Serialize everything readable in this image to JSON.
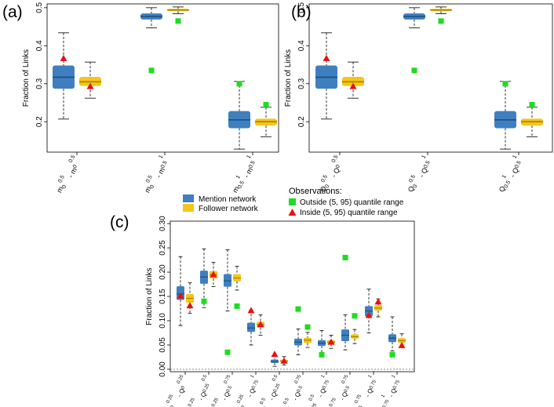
{
  "colors": {
    "mention": "#3f7fbf",
    "mention_median": "#1f4f7f",
    "follower": "#f5c518",
    "follower_median": "#a88000",
    "outside": "#1ddd1d",
    "inside": "#e81010"
  },
  "legend": {
    "series": [
      {
        "name": "Mention network",
        "color_key": "mention"
      },
      {
        "name": "Follower network",
        "color_key": "follower"
      }
    ],
    "observations_title": "Observations:",
    "observations": [
      {
        "label": "Outside (5, 95) quantile range",
        "marker": "square"
      },
      {
        "label": "Inside (5, 95) quantile range",
        "marker": "triangle"
      }
    ]
  },
  "chart_data": [
    {
      "type": "boxplot",
      "panel": "(a)",
      "ylabel": "Fraction of Links",
      "ylim": [
        0.12,
        0.51
      ],
      "yticks": [
        "0.2",
        "0.3",
        "0.4",
        "0.5"
      ],
      "ytick_values": [
        0.2,
        0.3,
        0.4,
        0.5
      ],
      "categories": [
        {
          "base": "m",
          "s1": "0",
          "p1": "0.5",
          "base2": "m",
          "s2": "0",
          "p2": "0.5"
        },
        {
          "base": "m",
          "s1": "0",
          "p1": "0.5",
          "base2": "m",
          "s2": "0.5",
          "p2": "1"
        },
        {
          "base": "m",
          "s1": "0.5",
          "p1": "1",
          "base2": "m",
          "s2": "0.5",
          "p2": "1"
        }
      ],
      "series": [
        {
          "name": "Mention network",
          "boxes": [
            {
              "min": 0.207,
              "q1": 0.287,
              "median": 0.317,
              "q3": 0.348,
              "max": 0.434
            },
            {
              "min": 0.447,
              "q1": 0.469,
              "median": 0.477,
              "q3": 0.485,
              "max": 0.5
            },
            {
              "min": 0.128,
              "q1": 0.183,
              "median": 0.205,
              "q3": 0.228,
              "max": 0.306
            }
          ]
        },
        {
          "name": "Follower network",
          "boxes": [
            {
              "min": 0.262,
              "q1": 0.294,
              "median": 0.305,
              "q3": 0.318,
              "max": 0.357
            },
            {
              "min": 0.484,
              "q1": 0.491,
              "median": 0.494,
              "q3": 0.497,
              "max": 0.502
            },
            {
              "min": 0.16,
              "q1": 0.19,
              "median": 0.2,
              "q3": 0.208,
              "max": 0.238
            }
          ]
        }
      ],
      "observations": [
        {
          "category": 0,
          "series": 0,
          "value": 0.368,
          "marker": "triangle"
        },
        {
          "category": 0,
          "series": 1,
          "value": 0.294,
          "marker": "triangle"
        },
        {
          "category": 1,
          "series": 0,
          "value": 0.335,
          "marker": "square"
        },
        {
          "category": 1,
          "series": 1,
          "value": 0.465,
          "marker": "square"
        },
        {
          "category": 2,
          "series": 0,
          "value": 0.3,
          "marker": "square"
        },
        {
          "category": 2,
          "series": 1,
          "value": 0.245,
          "marker": "square"
        }
      ]
    },
    {
      "type": "boxplot",
      "panel": "(b)",
      "ylabel": "Fraction of Links",
      "ylim": [
        0.12,
        0.51
      ],
      "yticks": [
        "0.2",
        "0.3",
        "0.4",
        "0.5"
      ],
      "ytick_values": [
        0.2,
        0.3,
        0.4,
        0.5
      ],
      "categories": [
        {
          "base": "Q",
          "s1": "0",
          "p1": "0.5",
          "base2": "Q",
          "s2": "0",
          "p2": "0.5"
        },
        {
          "base": "Q",
          "s1": "0",
          "p1": "0.5",
          "base2": "Q",
          "s2": "0.5",
          "p2": "1"
        },
        {
          "base": "Q",
          "s1": "0.5",
          "p1": "1",
          "base2": "Q",
          "s2": "0.5",
          "p2": "1"
        }
      ],
      "series": [
        {
          "name": "Mention network",
          "boxes": [
            {
              "min": 0.207,
              "q1": 0.287,
              "median": 0.317,
              "q3": 0.348,
              "max": 0.434
            },
            {
              "min": 0.447,
              "q1": 0.469,
              "median": 0.477,
              "q3": 0.485,
              "max": 0.5
            },
            {
              "min": 0.128,
              "q1": 0.183,
              "median": 0.205,
              "q3": 0.228,
              "max": 0.306
            }
          ]
        },
        {
          "name": "Follower network",
          "boxes": [
            {
              "min": 0.262,
              "q1": 0.294,
              "median": 0.305,
              "q3": 0.318,
              "max": 0.357
            },
            {
              "min": 0.484,
              "q1": 0.491,
              "median": 0.494,
              "q3": 0.497,
              "max": 0.502
            },
            {
              "min": 0.16,
              "q1": 0.19,
              "median": 0.2,
              "q3": 0.208,
              "max": 0.238
            }
          ]
        }
      ],
      "observations": [
        {
          "category": 0,
          "series": 0,
          "value": 0.368,
          "marker": "triangle"
        },
        {
          "category": 0,
          "series": 1,
          "value": 0.294,
          "marker": "triangle"
        },
        {
          "category": 1,
          "series": 0,
          "value": 0.335,
          "marker": "square"
        },
        {
          "category": 1,
          "series": 1,
          "value": 0.465,
          "marker": "square"
        },
        {
          "category": 2,
          "series": 0,
          "value": 0.3,
          "marker": "square"
        },
        {
          "category": 2,
          "series": 1,
          "value": 0.245,
          "marker": "square"
        }
      ]
    },
    {
      "type": "boxplot",
      "panel": "(c)",
      "ylabel": "Fraction of Links",
      "ylim": [
        -0.005,
        0.305
      ],
      "yticks": [
        "0.00",
        "0.05",
        "0.10",
        "0.15",
        "0.20",
        "0.25",
        "0.30"
      ],
      "ytick_values": [
        0,
        0.05,
        0.1,
        0.15,
        0.2,
        0.25,
        0.3
      ],
      "categories": [
        {
          "base": "Q",
          "s1": "0",
          "p1": "0.25",
          "base2": "Q",
          "s2": "0",
          "p2": "0.25"
        },
        {
          "base": "Q",
          "s1": "0",
          "p1": "0.25",
          "base2": "Q",
          "s2": "0.25",
          "p2": "0.5"
        },
        {
          "base": "Q",
          "s1": "0",
          "p1": "0.25",
          "base2": "Q",
          "s2": "0.5",
          "p2": "0.75"
        },
        {
          "base": "Q",
          "s1": "0",
          "p1": "0.25",
          "base2": "Q",
          "s2": "0.75",
          "p2": "1"
        },
        {
          "base": "Q",
          "s1": "0.25",
          "p1": "0.5",
          "base2": "Q",
          "s2": "0.25",
          "p2": "0.5"
        },
        {
          "base": "Q",
          "s1": "0.25",
          "p1": "0.5",
          "base2": "Q",
          "s2": "0.5",
          "p2": "0.75"
        },
        {
          "base": "Q",
          "s1": "0.25",
          "p1": "0.5",
          "base2": "Q",
          "s2": "0.75",
          "p2": "1"
        },
        {
          "base": "Q",
          "s1": "0.5",
          "p1": "0.75",
          "base2": "Q",
          "s2": "0.5",
          "p2": "0.75"
        },
        {
          "base": "Q",
          "s1": "0.5",
          "p1": "0.75",
          "base2": "Q",
          "s2": "0.75",
          "p2": "1"
        },
        {
          "base": "Q",
          "s1": "0.75",
          "p1": "1",
          "base2": "Q",
          "s2": "0.75",
          "p2": "1"
        }
      ],
      "series": [
        {
          "name": "Mention network",
          "boxes": [
            {
              "min": 0.09,
              "q1": 0.143,
              "median": 0.155,
              "q3": 0.171,
              "max": 0.232
            },
            {
              "min": 0.127,
              "q1": 0.176,
              "median": 0.19,
              "q3": 0.203,
              "max": 0.248
            },
            {
              "min": 0.12,
              "q1": 0.17,
              "median": 0.182,
              "q3": 0.196,
              "max": 0.246
            },
            {
              "min": 0.05,
              "q1": 0.077,
              "median": 0.085,
              "q3": 0.096,
              "max": 0.122
            },
            {
              "min": 0.006,
              "q1": 0.013,
              "median": 0.016,
              "q3": 0.02,
              "max": 0.03
            },
            {
              "min": 0.03,
              "q1": 0.049,
              "median": 0.056,
              "q3": 0.063,
              "max": 0.083
            },
            {
              "min": 0.033,
              "q1": 0.048,
              "median": 0.054,
              "q3": 0.06,
              "max": 0.08
            },
            {
              "min": 0.04,
              "q1": 0.058,
              "median": 0.07,
              "q3": 0.082,
              "max": 0.112
            },
            {
              "min": 0.075,
              "q1": 0.109,
              "median": 0.12,
              "q3": 0.13,
              "max": 0.165
            },
            {
              "min": 0.038,
              "q1": 0.056,
              "median": 0.064,
              "q3": 0.072,
              "max": 0.108
            }
          ]
        },
        {
          "name": "Follower network",
          "boxes": [
            {
              "min": 0.115,
              "q1": 0.137,
              "median": 0.146,
              "q3": 0.155,
              "max": 0.178
            },
            {
              "min": 0.17,
              "q1": 0.187,
              "median": 0.195,
              "q3": 0.202,
              "max": 0.22
            },
            {
              "min": 0.163,
              "q1": 0.181,
              "median": 0.188,
              "q3": 0.196,
              "max": 0.212
            },
            {
              "min": 0.07,
              "q1": 0.086,
              "median": 0.092,
              "q3": 0.098,
              "max": 0.112
            },
            {
              "min": 0.009,
              "q1": 0.014,
              "median": 0.017,
              "q3": 0.02,
              "max": 0.026
            },
            {
              "min": 0.045,
              "q1": 0.054,
              "median": 0.06,
              "q3": 0.065,
              "max": 0.076
            },
            {
              "min": 0.043,
              "q1": 0.052,
              "median": 0.056,
              "q3": 0.06,
              "max": 0.07
            },
            {
              "min": 0.053,
              "q1": 0.063,
              "median": 0.067,
              "q3": 0.072,
              "max": 0.082
            },
            {
              "min": 0.108,
              "q1": 0.121,
              "median": 0.126,
              "q3": 0.132,
              "max": 0.145
            },
            {
              "min": 0.045,
              "q1": 0.054,
              "median": 0.059,
              "q3": 0.064,
              "max": 0.073
            }
          ]
        }
      ],
      "observations": [
        {
          "category": 0,
          "series": 0,
          "value": 0.152,
          "marker": "triangle"
        },
        {
          "category": 0,
          "series": 1,
          "value": 0.132,
          "marker": "triangle"
        },
        {
          "category": 1,
          "series": 0,
          "value": 0.14,
          "marker": "square"
        },
        {
          "category": 1,
          "series": 1,
          "value": 0.196,
          "marker": "triangle"
        },
        {
          "category": 2,
          "series": 0,
          "value": 0.035,
          "marker": "square"
        },
        {
          "category": 2,
          "series": 1,
          "value": 0.13,
          "marker": "square"
        },
        {
          "category": 3,
          "series": 0,
          "value": 0.122,
          "marker": "triangle"
        },
        {
          "category": 3,
          "series": 1,
          "value": 0.093,
          "marker": "triangle"
        },
        {
          "category": 4,
          "series": 0,
          "value": 0.032,
          "marker": "triangle"
        },
        {
          "category": 4,
          "series": 1,
          "value": 0.018,
          "marker": "triangle"
        },
        {
          "category": 5,
          "series": 0,
          "value": 0.124,
          "marker": "square"
        },
        {
          "category": 5,
          "series": 1,
          "value": 0.087,
          "marker": "square"
        },
        {
          "category": 6,
          "series": 0,
          "value": 0.03,
          "marker": "square"
        },
        {
          "category": 6,
          "series": 1,
          "value": 0.057,
          "marker": "triangle"
        },
        {
          "category": 7,
          "series": 0,
          "value": 0.23,
          "marker": "square"
        },
        {
          "category": 7,
          "series": 1,
          "value": 0.11,
          "marker": "square"
        },
        {
          "category": 8,
          "series": 0,
          "value": 0.112,
          "marker": "triangle"
        },
        {
          "category": 8,
          "series": 1,
          "value": 0.14,
          "marker": "triangle"
        },
        {
          "category": 9,
          "series": 0,
          "value": 0.03,
          "marker": "square"
        },
        {
          "category": 9,
          "series": 1,
          "value": 0.05,
          "marker": "triangle"
        }
      ]
    }
  ]
}
